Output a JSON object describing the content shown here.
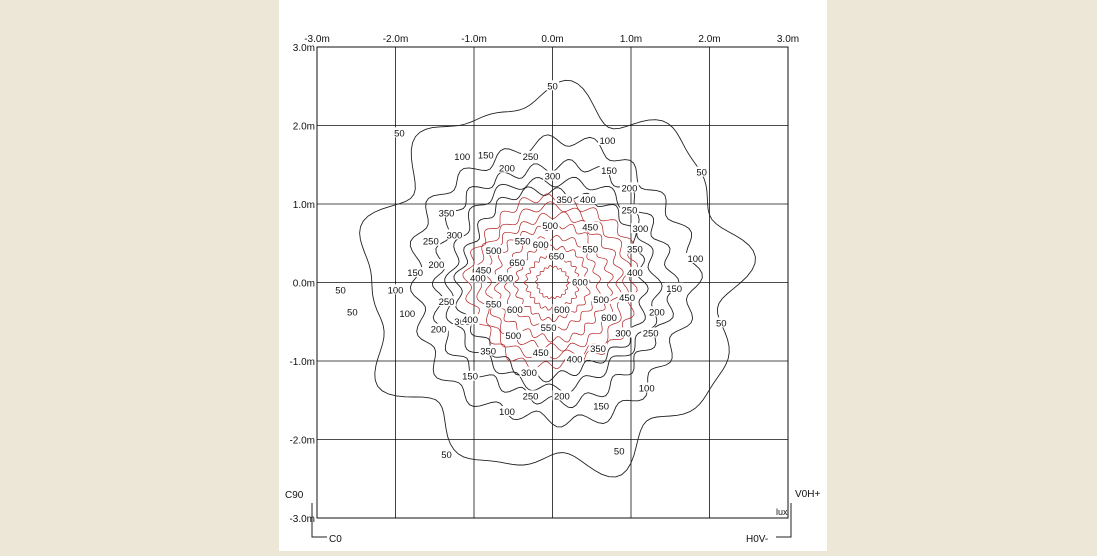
{
  "chart_data": {
    "type": "contour",
    "title": "",
    "unit_label": "lux",
    "x_ticks": [
      "-3.0m",
      "-2.0m",
      "-1.0m",
      "0.0m",
      "1.0m",
      "2.0m",
      "3.0m"
    ],
    "y_ticks": [
      "3.0m",
      "2.0m",
      "1.0m",
      "0.0m",
      "-1.0m",
      "-2.0m",
      "-3.0m"
    ],
    "xlim": [
      -3,
      3
    ],
    "ylim": [
      -3,
      3
    ],
    "grid": true,
    "levels": [
      50,
      100,
      150,
      200,
      250,
      300,
      350,
      400,
      450,
      500,
      550,
      600,
      650
    ],
    "colors": {
      "outer_lines": "#222222",
      "inner_lines": "#b22222",
      "grid": "#111111",
      "background": "#ece7d6"
    },
    "contours": [
      {
        "level": 50,
        "radius_m": 2.35,
        "labels": [
          {
            "x": 0.0,
            "y": 2.5,
            "text": "50"
          },
          {
            "x": -1.95,
            "y": 1.9,
            "text": "50"
          },
          {
            "x": 1.9,
            "y": 1.4,
            "text": "50"
          },
          {
            "x": -2.7,
            "y": -0.1,
            "text": "50"
          },
          {
            "x": -2.55,
            "y": -0.38,
            "text": "50"
          },
          {
            "x": 2.15,
            "y": -0.52,
            "text": "50"
          },
          {
            "x": -1.35,
            "y": -2.2,
            "text": "50"
          },
          {
            "x": 0.85,
            "y": -2.15,
            "text": "50"
          }
        ]
      },
      {
        "level": 100,
        "radius_m": 1.78,
        "labels": [
          {
            "x": 0.7,
            "y": 1.8,
            "text": "100"
          },
          {
            "x": -1.15,
            "y": 1.6,
            "text": "100"
          },
          {
            "x": 1.82,
            "y": 0.3,
            "text": "100"
          },
          {
            "x": -2.0,
            "y": -0.1,
            "text": "100"
          },
          {
            "x": -1.85,
            "y": -0.4,
            "text": "100"
          },
          {
            "x": 1.2,
            "y": -1.35,
            "text": "100"
          },
          {
            "x": -0.58,
            "y": -1.65,
            "text": "100"
          }
        ]
      },
      {
        "level": 150,
        "radius_m": 1.5,
        "labels": [
          {
            "x": -0.85,
            "y": 1.62,
            "text": "150"
          },
          {
            "x": 0.72,
            "y": 1.42,
            "text": "150"
          },
          {
            "x": -1.75,
            "y": 0.12,
            "text": "150"
          },
          {
            "x": 1.55,
            "y": -0.08,
            "text": "150"
          },
          {
            "x": -1.05,
            "y": -1.2,
            "text": "150"
          },
          {
            "x": 0.62,
            "y": -1.58,
            "text": "150"
          }
        ]
      },
      {
        "level": 200,
        "radius_m": 1.32,
        "labels": [
          {
            "x": -0.58,
            "y": 1.45,
            "text": "200"
          },
          {
            "x": 0.98,
            "y": 1.2,
            "text": "200"
          },
          {
            "x": -1.48,
            "y": 0.22,
            "text": "200"
          },
          {
            "x": 1.33,
            "y": -0.38,
            "text": "200"
          },
          {
            "x": -1.45,
            "y": -0.6,
            "text": "200"
          },
          {
            "x": 0.12,
            "y": -1.45,
            "text": "200"
          }
        ]
      },
      {
        "level": 250,
        "radius_m": 1.18,
        "labels": [
          {
            "x": -0.28,
            "y": 1.6,
            "text": "250"
          },
          {
            "x": 0.98,
            "y": 0.92,
            "text": "250"
          },
          {
            "x": -1.55,
            "y": 0.52,
            "text": "250"
          },
          {
            "x": -1.35,
            "y": -0.25,
            "text": "250"
          },
          {
            "x": 1.25,
            "y": -0.65,
            "text": "250"
          },
          {
            "x": -0.28,
            "y": -1.45,
            "text": "250"
          }
        ]
      },
      {
        "level": 300,
        "radius_m": 1.06,
        "labels": [
          {
            "x": 0.0,
            "y": 1.35,
            "text": "300"
          },
          {
            "x": 1.12,
            "y": 0.68,
            "text": "300"
          },
          {
            "x": -1.25,
            "y": 0.6,
            "text": "300"
          },
          {
            "x": -1.15,
            "y": -0.5,
            "text": "300"
          },
          {
            "x": 0.9,
            "y": -0.65,
            "text": "300"
          },
          {
            "x": -0.3,
            "y": -1.15,
            "text": "300"
          }
        ]
      },
      {
        "level": 350,
        "radius_m": 0.95,
        "labels": [
          {
            "x": 0.15,
            "y": 1.05,
            "text": "350"
          },
          {
            "x": -1.35,
            "y": 0.88,
            "text": "350"
          },
          {
            "x": 1.05,
            "y": 0.42,
            "text": "350"
          },
          {
            "x": -0.82,
            "y": -0.88,
            "text": "350"
          },
          {
            "x": 0.58,
            "y": -0.85,
            "text": "350"
          }
        ]
      },
      {
        "level": 400,
        "radius_m": 0.84,
        "labels": [
          {
            "x": 0.45,
            "y": 1.05,
            "text": "400"
          },
          {
            "x": -0.95,
            "y": 0.05,
            "text": "400"
          },
          {
            "x": 1.05,
            "y": 0.12,
            "text": "400"
          },
          {
            "x": -1.05,
            "y": -0.48,
            "text": "400"
          },
          {
            "x": 0.28,
            "y": -0.98,
            "text": "400"
          }
        ]
      },
      {
        "level": 450,
        "radius_m": 0.72,
        "labels": [
          {
            "x": 0.48,
            "y": 0.7,
            "text": "450"
          },
          {
            "x": -0.88,
            "y": 0.15,
            "text": "450"
          },
          {
            "x": 0.95,
            "y": -0.2,
            "text": "450"
          },
          {
            "x": -0.15,
            "y": -0.9,
            "text": "450"
          }
        ]
      },
      {
        "level": 500,
        "radius_m": 0.58,
        "labels": [
          {
            "x": -0.03,
            "y": 0.72,
            "text": "500"
          },
          {
            "x": -0.75,
            "y": 0.4,
            "text": "500"
          },
          {
            "x": 0.62,
            "y": -0.22,
            "text": "500"
          },
          {
            "x": -0.5,
            "y": -0.68,
            "text": "500"
          }
        ]
      },
      {
        "level": 550,
        "radius_m": 0.46,
        "labels": [
          {
            "x": -0.38,
            "y": 0.52,
            "text": "550"
          },
          {
            "x": 0.48,
            "y": 0.42,
            "text": "550"
          },
          {
            "x": -0.75,
            "y": -0.28,
            "text": "550"
          },
          {
            "x": -0.05,
            "y": -0.58,
            "text": "550"
          }
        ]
      },
      {
        "level": 600,
        "radius_m": 0.33,
        "labels": [
          {
            "x": -0.15,
            "y": 0.48,
            "text": "600"
          },
          {
            "x": -0.6,
            "y": 0.05,
            "text": "600"
          },
          {
            "x": 0.35,
            "y": 0.0,
            "text": "600"
          },
          {
            "x": -0.48,
            "y": -0.35,
            "text": "600"
          },
          {
            "x": 0.12,
            "y": -0.35,
            "text": "600"
          },
          {
            "x": 0.72,
            "y": -0.45,
            "text": "600"
          }
        ]
      },
      {
        "level": 650,
        "radius_m": 0.2,
        "labels": [
          {
            "x": -0.45,
            "y": 0.25,
            "text": "650"
          },
          {
            "x": 0.05,
            "y": 0.33,
            "text": "650"
          }
        ]
      }
    ],
    "corner_labels": {
      "c90": "C90",
      "c0": "C0",
      "v0h_plus": "V0H+",
      "h0v_minus": "H0V-"
    }
  }
}
